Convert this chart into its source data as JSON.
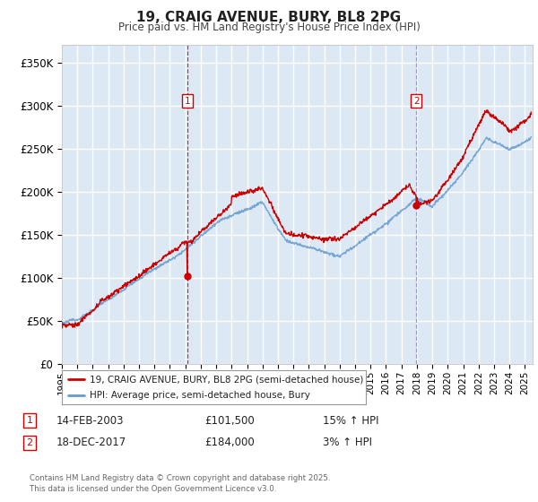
{
  "title": "19, CRAIG AVENUE, BURY, BL8 2PG",
  "subtitle": "Price paid vs. HM Land Registry's House Price Index (HPI)",
  "ylabel_ticks": [
    "£0",
    "£50K",
    "£100K",
    "£150K",
    "£200K",
    "£250K",
    "£300K",
    "£350K"
  ],
  "ylabel_values": [
    0,
    50000,
    100000,
    150000,
    200000,
    250000,
    300000,
    350000
  ],
  "ylim": [
    0,
    370000
  ],
  "xlim_start": 1995.0,
  "xlim_end": 2025.5,
  "fig_bg_color": "#ffffff",
  "plot_bg_color": "#dce9f5",
  "grid_color": "#ffffff",
  "red_line_color": "#cc0000",
  "blue_line_color": "#6699cc",
  "marker1_x": 2003.12,
  "marker1_y": 101500,
  "marker1_label": "14-FEB-2003",
  "marker1_price": "£101,500",
  "marker1_hpi": "15% ↑ HPI",
  "marker2_x": 2017.96,
  "marker2_y": 184000,
  "marker2_label": "18-DEC-2017",
  "marker2_price": "£184,000",
  "marker2_hpi": "3% ↑ HPI",
  "legend_line1": "19, CRAIG AVENUE, BURY, BL8 2PG (semi-detached house)",
  "legend_line2": "HPI: Average price, semi-detached house, Bury",
  "footer": "Contains HM Land Registry data © Crown copyright and database right 2025.\nThis data is licensed under the Open Government Licence v3.0.",
  "x_ticks": [
    1995,
    1996,
    1997,
    1998,
    1999,
    2000,
    2001,
    2002,
    2003,
    2004,
    2005,
    2006,
    2007,
    2008,
    2009,
    2010,
    2011,
    2012,
    2013,
    2014,
    2015,
    2016,
    2017,
    2018,
    2019,
    2020,
    2021,
    2022,
    2023,
    2024,
    2025
  ]
}
